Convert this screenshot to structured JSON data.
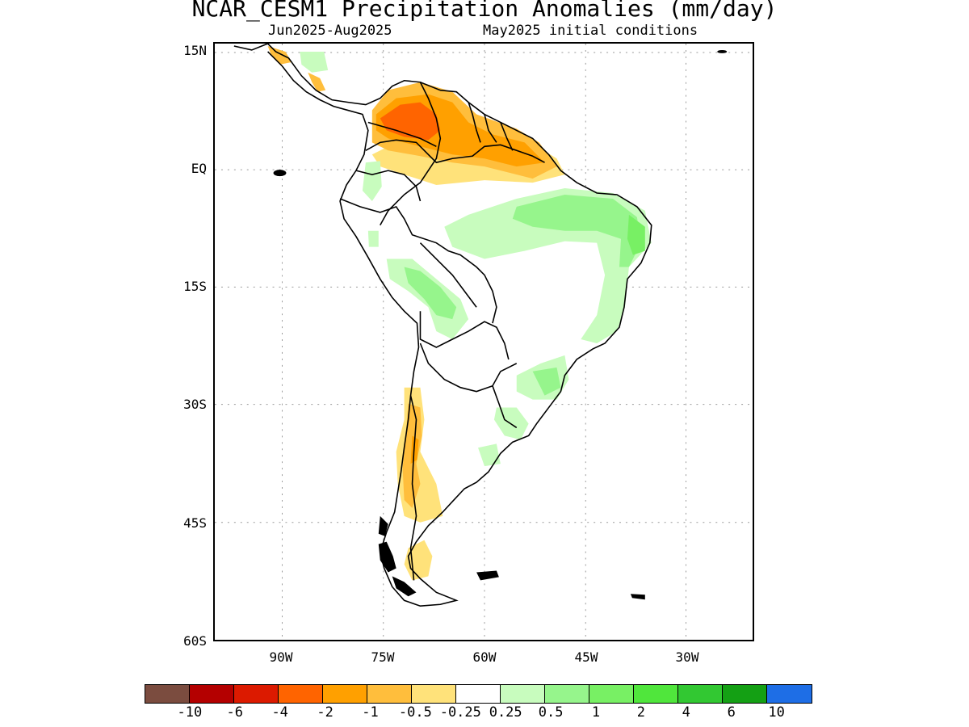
{
  "title": "NCAR_CESM1 Precipitation Anomalies (mm/day)",
  "subtitle_left": "Jun2025-Aug2025",
  "subtitle_right": "May2025 initial conditions",
  "map": {
    "region": "South America",
    "projection": "lat-lon",
    "lon_range": [
      -100,
      -20
    ],
    "lat_range": [
      -60,
      15
    ],
    "grid": "dotted",
    "lat_labels": [
      "15N",
      "EQ",
      "15S",
      "30S",
      "45S",
      "60S"
    ],
    "lon_labels": [
      "90W",
      "75W",
      "60W",
      "45W",
      "30W"
    ],
    "colors": {
      "coastline": "#000000",
      "grid": "#9a9a9a",
      "drier": "#f4a010",
      "wetter": "#86e078"
    }
  },
  "colorbar": {
    "colors": [
      "#7b4c3f",
      "#b40000",
      "#dc1a00",
      "#ff6400",
      "#ffa000",
      "#ffbe3c",
      "#ffe27a",
      "#ffffff",
      "#c8fcbe",
      "#96f58c",
      "#78f064",
      "#50e63c",
      "#32c832",
      "#14a014",
      "#1e6ee6"
    ],
    "labels": [
      "-10",
      "-6",
      "-4",
      "-2",
      "-1",
      "-0.5",
      "-0.25",
      "0.25",
      "0.5",
      "1",
      "2",
      "4",
      "6",
      "10"
    ]
  }
}
